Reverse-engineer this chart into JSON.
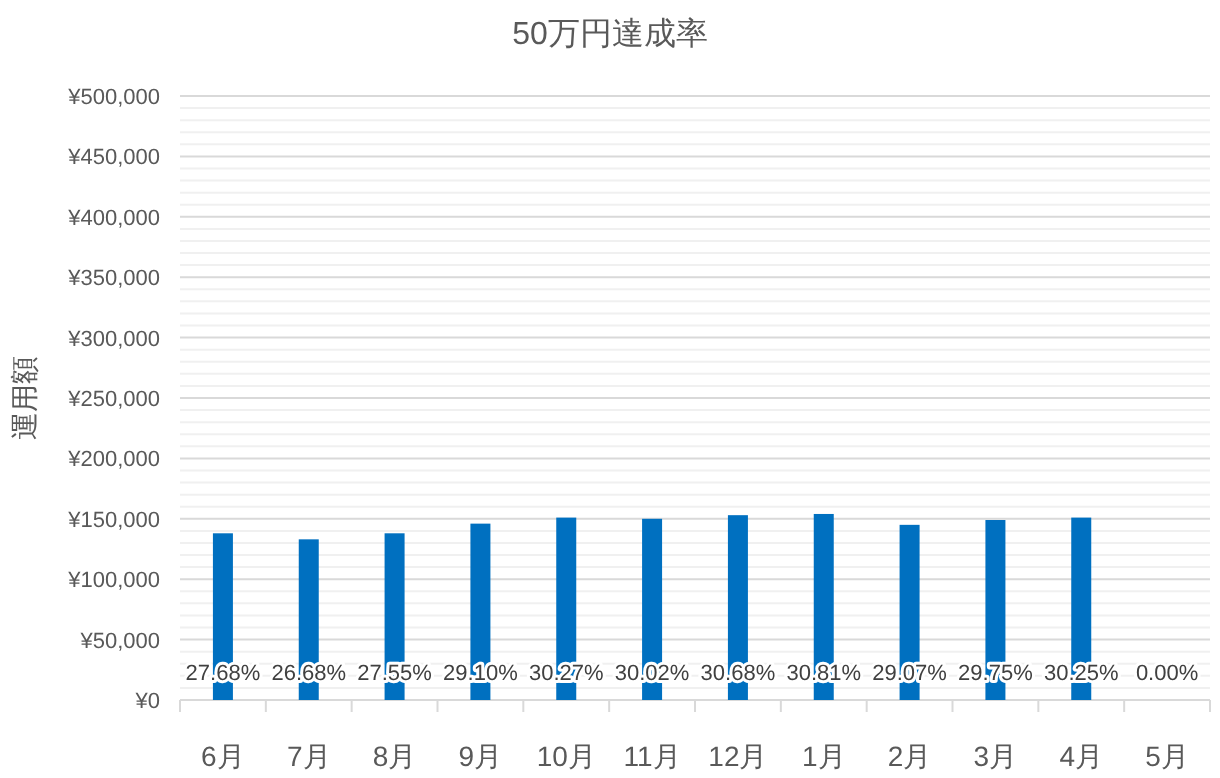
{
  "chart_data": {
    "type": "bar",
    "title": "50万円達成率",
    "ylabel": "運用額",
    "categories": [
      "6月",
      "7月",
      "8月",
      "9月",
      "10月",
      "11月",
      "12月",
      "1月",
      "2月",
      "3月",
      "4月",
      "5月"
    ],
    "series": [
      {
        "color": "#0070c0",
        "values": [
          138000,
          133000,
          138000,
          146000,
          151000,
          150000,
          153000,
          154000,
          145000,
          149000,
          151000,
          0
        ]
      }
    ],
    "annotations": [
      {
        "text": "27.68%",
        "x": "6月"
      },
      {
        "text": "26.68%",
        "x": "7月"
      },
      {
        "text": "27.55%",
        "x": "8月"
      },
      {
        "text": "29.10%",
        "x": "9月"
      },
      {
        "text": "30.27%",
        "x": "10月"
      },
      {
        "text": "30.02%",
        "x": "11月"
      },
      {
        "text": "30.68%",
        "x": "12月"
      },
      {
        "text": "30.81%",
        "x": "1月"
      },
      {
        "text": "29.07%",
        "x": "2月"
      },
      {
        "text": "29.75%",
        "x": "3月"
      },
      {
        "text": "30.25%",
        "x": "4月"
      },
      "0.00%"
    ],
    "ylim": [
      0,
      500000
    ],
    "yticks": [
      {
        "value": 0,
        "label": "¥0"
      },
      {
        "value": 50000,
        "label": "¥50,000"
      },
      {
        "value": 100000,
        "label": "¥100,000"
      },
      {
        "value": 150000,
        "label": "¥150,000"
      },
      {
        "value": 200000,
        "label": "¥200,000"
      },
      {
        "value": 250000,
        "label": "¥250,000"
      },
      {
        "value": 300000,
        "label": "¥300,000"
      },
      {
        "value": 350000,
        "label": "¥350,000"
      },
      {
        "value": 400000,
        "label": "¥400,000"
      },
      {
        "value": 450000,
        "label": "¥450,000"
      },
      {
        "value": 500000,
        "label": "¥500,000"
      }
    ],
    "grid": "y"
  }
}
